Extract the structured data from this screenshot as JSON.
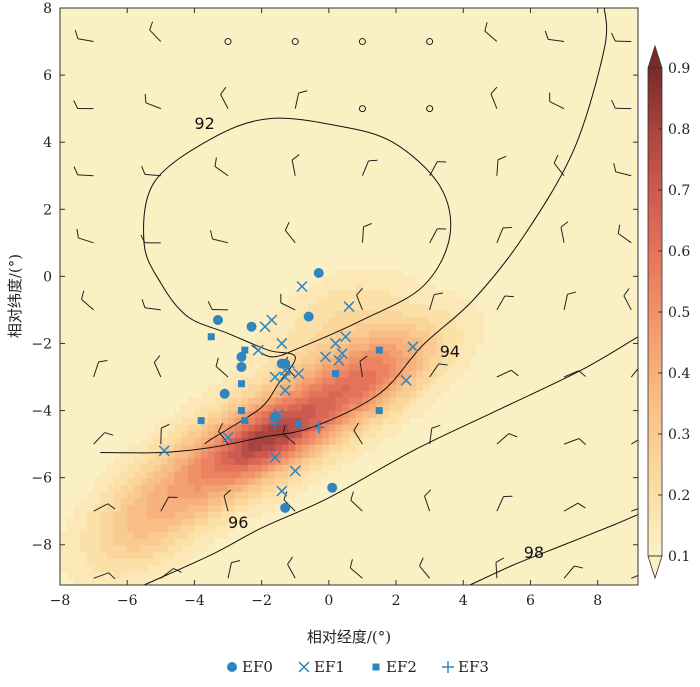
{
  "chart_data": {
    "type": "heatmap",
    "xlabel": "相对经度/(°)",
    "ylabel": "相对纬度/(°)",
    "xlim": [
      -8,
      9.2
    ],
    "ylim": [
      -9.2,
      8
    ],
    "xticks": [
      -8,
      -6,
      -4,
      -2,
      0,
      2,
      4,
      6,
      8
    ],
    "yticks": [
      -8,
      -6,
      -4,
      -2,
      0,
      2,
      4,
      6,
      8
    ],
    "colorbar": {
      "ticks": [
        0.1,
        0.2,
        0.3,
        0.4,
        0.5,
        0.6,
        0.7,
        0.8,
        0.9
      ],
      "range": [
        0.1,
        0.9
      ],
      "colors": [
        "#fbf0c4",
        "#fbe0a8",
        "#f9cb90",
        "#f6b17c",
        "#f19168",
        "#e4735a",
        "#cd5a4e",
        "#a8443e",
        "#7a2a28"
      ]
    },
    "background_color": "#fbf0c4",
    "density_blobs": [
      {
        "x": -1.4,
        "y": -4.6,
        "sx": 3.2,
        "sy": 0.9,
        "angle": 30,
        "amp": 0.42
      },
      {
        "x": -1.8,
        "y": -4.8,
        "sx": 1.2,
        "sy": 0.55,
        "angle": 28,
        "amp": 0.28
      },
      {
        "x": 1.3,
        "y": -2.9,
        "sx": 1.4,
        "sy": 0.7,
        "angle": 30,
        "amp": 0.22
      },
      {
        "x": 0.3,
        "y": -1.8,
        "sx": 1.8,
        "sy": 0.9,
        "angle": 25,
        "amp": 0.12
      },
      {
        "x": -4.5,
        "y": -6.2,
        "sx": 2.2,
        "sy": 1.0,
        "angle": 45,
        "amp": 0.12
      },
      {
        "x": -5.8,
        "y": -7.8,
        "sx": 1.2,
        "sy": 0.9,
        "angle": 40,
        "amp": 0.08
      },
      {
        "x": 0.2,
        "y": -0.6,
        "sx": 1.4,
        "sy": 0.6,
        "angle": 20,
        "amp": 0.06
      }
    ],
    "contours": [
      {
        "label": "92",
        "points": [
          [
            -3.7,
            -5.0
          ],
          [
            -3.5,
            -4.85
          ],
          [
            -3.0,
            -4.55
          ],
          [
            -2.0,
            -3.9
          ],
          [
            -1.5,
            -3.2
          ],
          [
            -1.0,
            -2.4
          ],
          [
            -1.8,
            -2.2
          ],
          [
            -3.0,
            -1.7
          ],
          [
            -4.2,
            -1.2
          ],
          [
            -5.0,
            -0.2
          ],
          [
            -5.5,
            1.0
          ],
          [
            -5.2,
            2.8
          ],
          [
            -3.5,
            4.1
          ],
          [
            -1.8,
            4.7
          ],
          [
            0.2,
            4.5
          ],
          [
            1.9,
            4.0
          ],
          [
            3.3,
            2.7
          ],
          [
            3.6,
            1.2
          ],
          [
            2.8,
            -0.3
          ],
          [
            1.0,
            -1.3
          ],
          [
            -0.8,
            -2.1
          ],
          [
            -1.7,
            -2.4
          ],
          [
            -2.3,
            -2.05
          ]
        ],
        "label_pos": [
          -4.0,
          4.4
        ]
      },
      {
        "label": "94",
        "points": [
          [
            -6.8,
            -5.25
          ],
          [
            -5.0,
            -5.25
          ],
          [
            -3.5,
            -5.1
          ],
          [
            -2.0,
            -4.8
          ],
          [
            -0.5,
            -4.5
          ],
          [
            1.5,
            -3.5
          ],
          [
            2.8,
            -2.05
          ],
          [
            4.3,
            -0.7
          ],
          [
            5.8,
            1.2
          ],
          [
            7.3,
            3.8
          ],
          [
            8.2,
            6.8
          ],
          [
            8.2,
            8.0
          ]
        ],
        "label_pos": [
          3.3,
          -2.4
        ]
      },
      {
        "label": "96",
        "points": [
          [
            -5.5,
            -9.2
          ],
          [
            -3.5,
            -8.3
          ],
          [
            -2.0,
            -7.5
          ],
          [
            0.0,
            -6.6
          ],
          [
            2.5,
            -5.2
          ],
          [
            5.0,
            -4.0
          ],
          [
            7.5,
            -2.8
          ],
          [
            9.2,
            -1.8
          ]
        ],
        "label_pos": [
          -3.0,
          -7.5
        ]
      },
      {
        "label": "98",
        "points": [
          [
            4.2,
            -9.2
          ],
          [
            5.5,
            -8.6
          ],
          [
            7.0,
            -8.0
          ],
          [
            8.5,
            -7.4
          ],
          [
            9.2,
            -7.1
          ]
        ],
        "label_pos": [
          5.8,
          -8.4
        ]
      }
    ],
    "wind_barbs": {
      "x": [
        -7,
        -5,
        -3,
        -1,
        1,
        3,
        5,
        7,
        9
      ],
      "y": [
        7,
        5,
        3,
        1,
        -1,
        -3,
        -5,
        -7,
        -9
      ],
      "calm": [
        [
          -3,
          7
        ],
        [
          -1,
          7
        ],
        [
          1,
          7
        ],
        [
          3,
          7
        ],
        [
          1,
          5
        ],
        [
          3,
          5
        ]
      ]
    },
    "series": [
      {
        "name": "EF0",
        "marker": "circle",
        "x": [
          -3.3,
          -2.3,
          -2.6,
          -2.6,
          -1.4,
          -3.1,
          -1.6,
          -0.6,
          -0.3,
          0.1,
          -1.3,
          -1.3
        ],
        "y": [
          -1.3,
          -1.5,
          -2.4,
          -2.7,
          -2.6,
          -3.5,
          -4.2,
          -1.2,
          0.1,
          -6.3,
          -6.9,
          -2.6
        ]
      },
      {
        "name": "EF1",
        "marker": "x",
        "x": [
          -0.8,
          -1.9,
          -1.7,
          -1.4,
          -2.1,
          -1.6,
          -1.3,
          -1.3,
          -1.3,
          -0.9,
          -0.1,
          0.2,
          0.4,
          0.3,
          0.5,
          0.6,
          2.3,
          2.5,
          -3.0,
          -1.6,
          -1.0,
          -1.4,
          -4.9,
          -1.5
        ],
        "y": [
          -0.3,
          -1.5,
          -1.3,
          -2.0,
          -2.2,
          -3.0,
          -2.8,
          -3.4,
          -3.0,
          -2.9,
          -2.4,
          -2.0,
          -2.3,
          -2.5,
          -1.8,
          -0.9,
          -3.1,
          -2.1,
          -4.8,
          -5.4,
          -5.8,
          -6.4,
          -5.2,
          -4.1
        ]
      },
      {
        "name": "EF2",
        "marker": "square",
        "x": [
          -3.5,
          -2.5,
          -2.6,
          -2.6,
          -2.5,
          -3.8,
          -0.9,
          0.2,
          1.5,
          1.5
        ],
        "y": [
          -1.8,
          -2.2,
          -3.2,
          -4.0,
          -4.3,
          -4.3,
          -4.4,
          -2.9,
          -2.2,
          -4.0
        ]
      },
      {
        "name": "EF3",
        "marker": "plus",
        "x": [
          -1.2,
          -0.3,
          -1.6
        ],
        "y": [
          -2.7,
          -4.5,
          -4.4
        ]
      }
    ],
    "point_color": "#2e86c1",
    "contour_color": "#111111",
    "barb_color": "#222222"
  }
}
